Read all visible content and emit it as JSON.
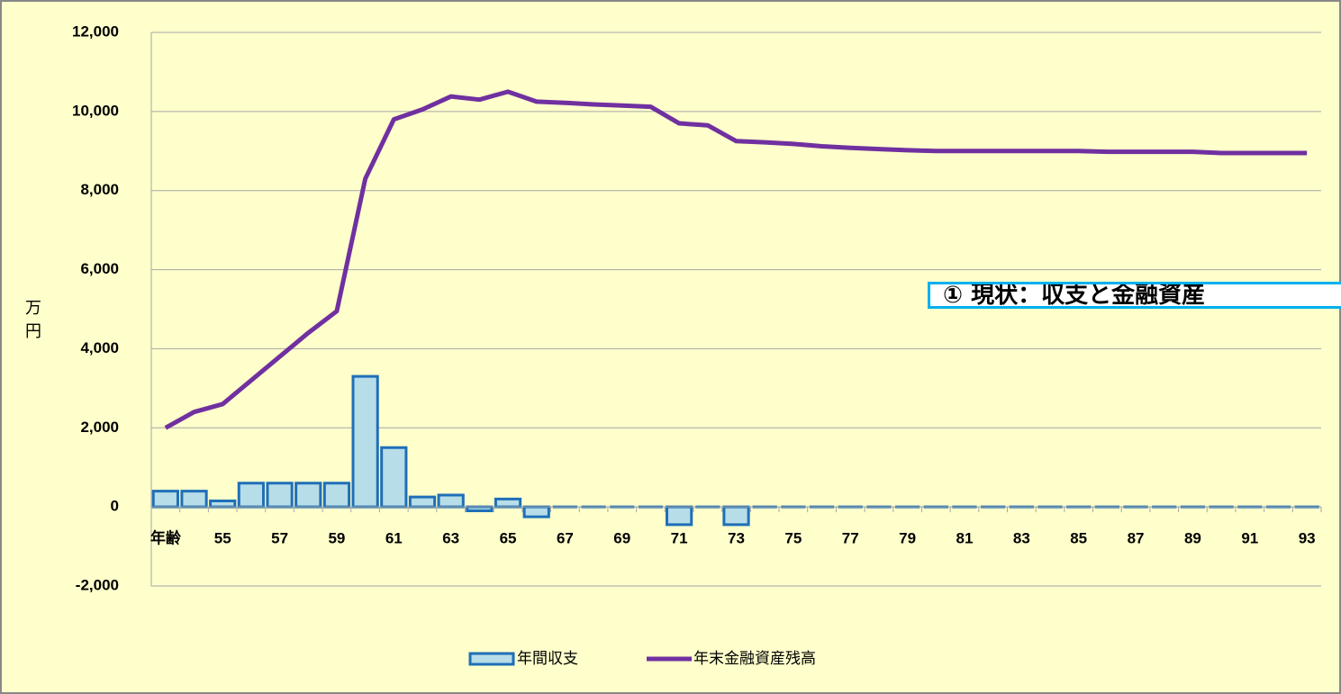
{
  "chart_data": {
    "type": "bar_line",
    "annotation": "① 現状：収支と金融資産",
    "y_label": "万円",
    "categories": [
      "年齢",
      null,
      "55",
      null,
      "57",
      null,
      "59",
      null,
      "61",
      null,
      "63",
      null,
      "65",
      null,
      "67",
      null,
      "69",
      null,
      "71",
      null,
      "73",
      null,
      "75",
      null,
      "77",
      null,
      "79",
      null,
      "81",
      null,
      "83",
      null,
      "85",
      null,
      "87",
      null,
      "89",
      null,
      "91",
      null,
      "93"
    ],
    "series": [
      {
        "name": "年間収支",
        "type": "bar",
        "color": "#b7dde8",
        "edge_color": "#1f6fb8",
        "values": [
          400,
          400,
          150,
          600,
          600,
          600,
          600,
          3300,
          1500,
          250,
          300,
          -100,
          200,
          -250,
          0,
          0,
          0,
          0,
          -450,
          0,
          -450,
          0,
          0,
          0,
          0,
          0,
          0,
          0,
          0,
          0,
          0,
          0,
          0,
          0,
          0,
          0,
          0,
          0,
          0,
          0,
          0
        ]
      },
      {
        "name": "年末金融資産残高",
        "type": "line",
        "color": "#7030a0",
        "values": [
          2000,
          2400,
          2600,
          3200,
          3800,
          4400,
          4950,
          8300,
          9800,
          10050,
          10380,
          10300,
          10500,
          10250,
          10220,
          10180,
          10150,
          10120,
          9700,
          9650,
          9250,
          9220,
          9180,
          9120,
          9080,
          9050,
          9020,
          9000,
          9000,
          9000,
          9000,
          9000,
          9000,
          8980,
          8980,
          8980,
          8980,
          8950,
          8950,
          8950,
          8950
        ]
      }
    ],
    "ylim": [
      -2000,
      12000
    ],
    "yticks": [
      {
        "value": -2000,
        "label": "-2,000"
      },
      0,
      {
        "value": 2000,
        "label": "2,000"
      },
      {
        "value": 4000,
        "label": "4,000"
      },
      {
        "value": 6000,
        "label": "6,000"
      },
      {
        "value": 8000,
        "label": "8,000"
      },
      {
        "value": 10000,
        "label": "10,000"
      },
      {
        "value": 12000,
        "label": "12,000"
      }
    ],
    "negative_tick_color": "#ff0000",
    "grid": true,
    "legend": "bottom"
  }
}
